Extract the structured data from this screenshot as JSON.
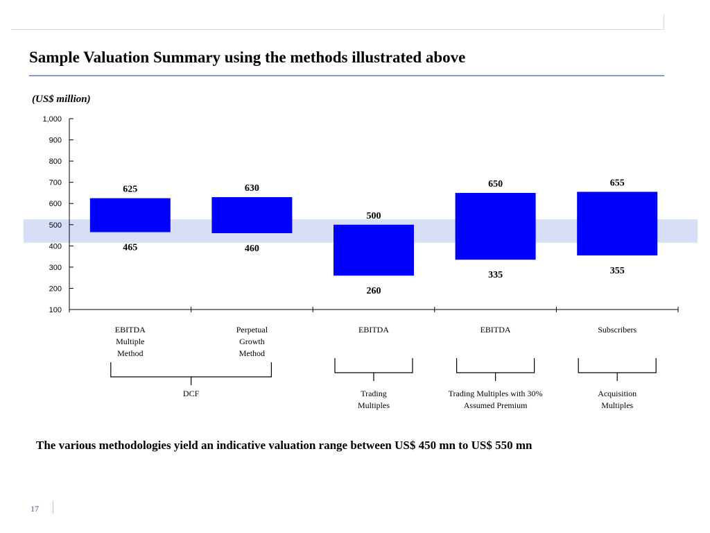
{
  "title": "Sample Valuation Summary using the methods illustrated above",
  "unit_label": "(US$ million)",
  "summary": "The various methodologies yield an indicative valuation range between US$ 450 mn to US$ 550 mn",
  "page_number": "17",
  "colors": {
    "bar": "#0000ff",
    "band": "#d6dff5",
    "title_rule": "#7f9bc8",
    "page_number": "#1f5fa8"
  },
  "chart_data": {
    "type": "bar",
    "subtype": "floating-range",
    "ylim": [
      100,
      1000
    ],
    "yticks": [
      100,
      200,
      300,
      400,
      500,
      600,
      700,
      800,
      900,
      1000
    ],
    "ytick_labels": [
      "100",
      "200",
      "300",
      "400",
      "500",
      "600",
      "700",
      "800",
      "900",
      "1,000"
    ],
    "highlight_band": [
      415,
      525
    ],
    "categories": [
      "EBITDA Multiple Method",
      "Perpetual Growth Method",
      "EBITDA",
      "EBITDA",
      "Subscribers"
    ],
    "category_lines": [
      [
        "EBITDA",
        "Multiple",
        "Method"
      ],
      [
        "Perpetual",
        "Growth",
        "Method"
      ],
      [
        "EBITDA"
      ],
      [
        "EBITDA"
      ],
      [
        "Subscribers"
      ]
    ],
    "high": [
      625,
      630,
      500,
      650,
      655
    ],
    "low": [
      465,
      460,
      260,
      335,
      355
    ],
    "high_labels": [
      "625",
      "630",
      "500",
      "650",
      "655"
    ],
    "low_labels": [
      "465",
      "460",
      "260",
      "335",
      "355"
    ],
    "groups": [
      {
        "lines": [
          "DCF"
        ],
        "from": 0,
        "to": 1
      },
      {
        "lines": [
          "Trading",
          "Multiples"
        ],
        "from": 2,
        "to": 2
      },
      {
        "lines": [
          "Trading Multiples with 30%",
          "Assumed Premium"
        ],
        "from": 3,
        "to": 3
      },
      {
        "lines": [
          "Acquisition",
          "Multiples"
        ],
        "from": 4,
        "to": 4
      }
    ],
    "grid": false,
    "legend": "none"
  }
}
